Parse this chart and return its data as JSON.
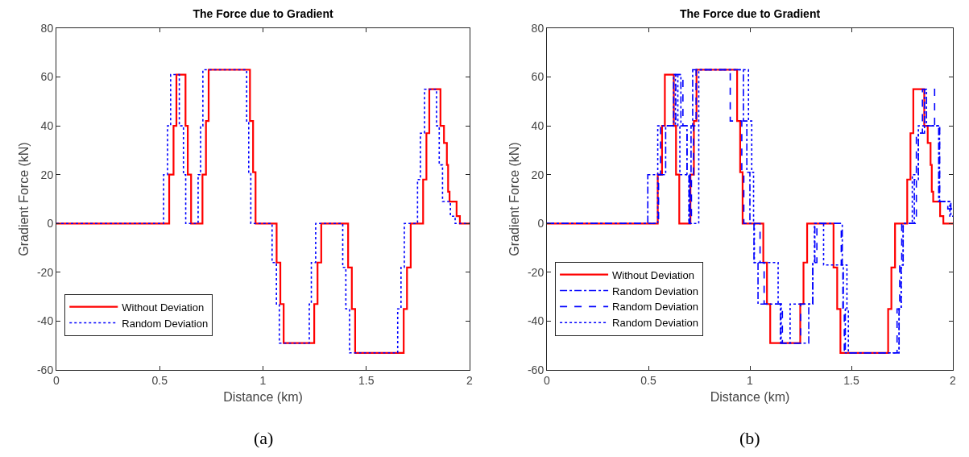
{
  "chart_data": [
    {
      "type": "step",
      "title": "The Force due to Gradient",
      "xlabel": "Distance (km)",
      "ylabel": "Gradient Force (kN)",
      "annotations": [
        "(a)"
      ],
      "xlim": [
        0,
        2
      ],
      "ylim": [
        -60,
        80
      ],
      "xticks": [
        0,
        0.5,
        1,
        1.5,
        2
      ],
      "yticks": [
        -60,
        -40,
        -20,
        0,
        20,
        40,
        60,
        80
      ],
      "grid": false,
      "legend": "bottom left",
      "marker": "none",
      "series": [
        {
          "name": "Without Deviation",
          "color": "#ff0000",
          "line_style": "solid",
          "x": [
            0,
            0.546,
            0.567,
            0.581,
            0.625,
            0.636,
            0.652,
            0.707,
            0.724,
            0.737,
            0.937,
            0.952,
            0.964,
            1.066,
            1.084,
            1.1,
            1.248,
            1.264,
            1.282,
            1.412,
            1.43,
            1.446,
            1.681,
            1.697,
            1.715,
            1.775,
            1.791,
            1.805,
            1.859,
            1.876,
            1.89,
            1.896,
            1.903,
            1.937,
            1.953,
            2
          ],
          "values": [
            0,
            20,
            40,
            61,
            40,
            20,
            0,
            20,
            42,
            63,
            42,
            21,
            0,
            -16,
            -33,
            -49,
            -33,
            -16,
            0,
            -18,
            -35,
            -53,
            -35,
            -18,
            0,
            18,
            37,
            55,
            40,
            33,
            24,
            13,
            9,
            3,
            0,
            0
          ]
        },
        {
          "name": "Random Deviation",
          "color": "#0000ff",
          "line_style": "dotted",
          "x": [
            0,
            0.519,
            0.538,
            0.553,
            0.595,
            0.615,
            0.626,
            0.686,
            0.698,
            0.709,
            0.921,
            0.931,
            0.941,
            1.044,
            1.065,
            1.079,
            1.224,
            1.234,
            1.255,
            1.386,
            1.401,
            1.419,
            1.652,
            1.668,
            1.684,
            1.748,
            1.762,
            1.782,
            1.84,
            1.853,
            1.869,
            1.907,
            1.93,
            2
          ],
          "values": [
            0,
            20,
            40,
            61,
            40,
            20,
            0,
            20,
            40,
            63,
            42,
            21,
            0,
            -16,
            -33,
            -49,
            -33,
            -16,
            0,
            -18,
            -35,
            -53,
            -35,
            -18,
            0,
            18,
            37,
            55,
            40,
            24,
            9,
            3,
            0,
            0
          ]
        }
      ]
    },
    {
      "type": "step",
      "title": "The Force due to Gradient",
      "xlabel": "Distance (km)",
      "ylabel": "Gradient Force (kN)",
      "annotations": [
        "(b)"
      ],
      "xlim": [
        0,
        2
      ],
      "ylim": [
        -60,
        80
      ],
      "xticks": [
        0,
        0.5,
        1,
        1.5,
        2
      ],
      "yticks": [
        -60,
        -40,
        -20,
        0,
        20,
        40,
        60,
        80
      ],
      "grid": false,
      "legend": "bottom left",
      "marker": "none",
      "series": [
        {
          "name": "Without Deviation",
          "color": "#ff0000",
          "line_style": "solid",
          "x": [
            0,
            0.546,
            0.567,
            0.581,
            0.625,
            0.636,
            0.652,
            0.707,
            0.724,
            0.737,
            0.937,
            0.952,
            0.964,
            1.066,
            1.084,
            1.1,
            1.248,
            1.264,
            1.282,
            1.412,
            1.43,
            1.446,
            1.681,
            1.697,
            1.715,
            1.775,
            1.791,
            1.805,
            1.859,
            1.876,
            1.89,
            1.896,
            1.903,
            1.937,
            1.953,
            2
          ],
          "values": [
            0,
            20,
            40,
            61,
            40,
            20,
            0,
            20,
            42,
            63,
            42,
            21,
            0,
            -16,
            -33,
            -49,
            -33,
            -16,
            0,
            -18,
            -35,
            -53,
            -35,
            -18,
            0,
            18,
            37,
            55,
            40,
            33,
            24,
            13,
            9,
            3,
            0,
            0
          ]
        },
        {
          "name": "Random Deviation",
          "color": "#0000ff",
          "line_style": "dashdot",
          "x": [
            0,
            0.497,
            0.585,
            0.624,
            0.66,
            0.69,
            0.7,
            0.705,
            0.71,
            0.718,
            0.968,
            0.985,
            1,
            1.02,
            1.04,
            1.15,
            1.29,
            1.31,
            1.32,
            1.455,
            1.46,
            1.47,
            1.735,
            1.745,
            1.755,
            1.81,
            1.83,
            1.86,
            1.87,
            1.93,
            1.99,
            2
          ],
          "values": [
            0,
            20,
            40,
            61,
            40,
            20,
            0,
            20,
            40,
            63,
            42,
            21,
            0,
            -16,
            -33,
            -49,
            -33,
            -16,
            0,
            -17,
            -35,
            -53,
            -35,
            -17,
            0,
            18,
            37,
            55,
            40,
            9,
            3,
            3
          ]
        },
        {
          "name": "Random Deviation",
          "color": "#0000ff",
          "line_style": "dashed",
          "x": [
            0,
            0.55,
            0.56,
            0.635,
            0.67,
            0.69,
            0.705,
            0.712,
            0.722,
            0.735,
            0.903,
            0.96,
            0.97,
            1.05,
            1.07,
            1.16,
            1.25,
            1.31,
            1.33,
            1.45,
            1.458,
            1.465,
            1.725,
            1.738,
            1.748,
            1.82,
            1.85,
            1.91,
            1.935,
            1.975,
            2
          ],
          "values": [
            0,
            20,
            40,
            61,
            40,
            20,
            0,
            20,
            40,
            63,
            42,
            21,
            0,
            -16,
            -33,
            -49,
            -33,
            -16,
            0,
            -17,
            -35,
            -53,
            -35,
            -17,
            0,
            37,
            55,
            40,
            9,
            6,
            6
          ]
        },
        {
          "name": "Random Deviation",
          "color": "#0000ff",
          "line_style": "dotted",
          "x": [
            0,
            0.546,
            0.633,
            0.645,
            0.655,
            0.7,
            0.748,
            0.993,
            1.009,
            1.018,
            1.022,
            1.139,
            1.154,
            1.198,
            1.31,
            1.318,
            1.363,
            1.478,
            1.485,
            1.735,
            1.745,
            1.755,
            1.8,
            1.83,
            1.934,
            1.985,
            2
          ],
          "values": [
            0,
            40,
            61,
            40,
            20,
            0,
            63,
            42,
            21,
            0,
            -16,
            -33,
            -49,
            -33,
            -16,
            0,
            -17,
            -35,
            -53,
            -35,
            -17,
            0,
            20,
            40,
            9,
            3,
            3
          ]
        }
      ]
    }
  ]
}
